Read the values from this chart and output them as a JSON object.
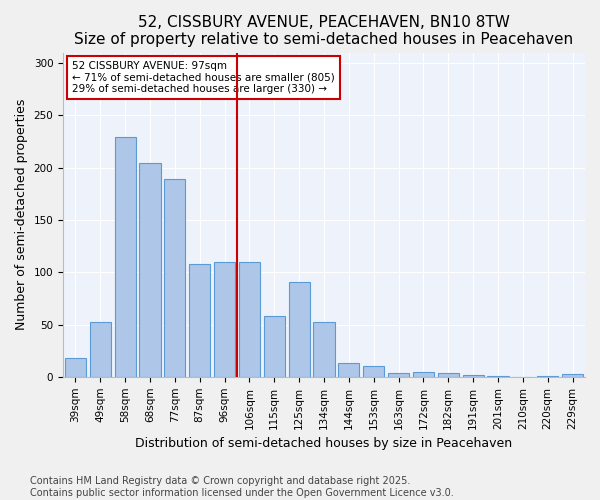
{
  "title": "52, CISSBURY AVENUE, PEACEHAVEN, BN10 8TW",
  "subtitle": "Size of property relative to semi-detached houses in Peacehaven",
  "xlabel": "Distribution of semi-detached houses by size in Peacehaven",
  "ylabel": "Number of semi-detached properties",
  "categories": [
    "39sqm",
    "49sqm",
    "58sqm",
    "68sqm",
    "77sqm",
    "87sqm",
    "96sqm",
    "106sqm",
    "115sqm",
    "125sqm",
    "134sqm",
    "144sqm",
    "153sqm",
    "163sqm",
    "172sqm",
    "182sqm",
    "191sqm",
    "201sqm",
    "210sqm",
    "220sqm",
    "229sqm"
  ],
  "values": [
    18,
    52,
    229,
    205,
    189,
    108,
    110,
    110,
    58,
    91,
    52,
    13,
    10,
    4,
    5,
    4,
    2,
    1,
    0,
    1,
    3
  ],
  "bar_color": "#aec6e8",
  "bar_edge_color": "#5b9bd5",
  "vline_bin_index": 6,
  "vline_color": "#cc0000",
  "annotation_title": "52 CISSBURY AVENUE: 97sqm",
  "annotation_line2": "← 71% of semi-detached houses are smaller (805)",
  "annotation_line3": "29% of semi-detached houses are larger (330) →",
  "annotation_box_edgecolor": "#cc0000",
  "annotation_bg_color": "#ffffff",
  "ylim": [
    0,
    310
  ],
  "yticks": [
    0,
    50,
    100,
    150,
    200,
    250,
    300
  ],
  "background_color": "#eef3fb",
  "grid_color": "#ffffff",
  "footer_line1": "Contains HM Land Registry data © Crown copyright and database right 2025.",
  "footer_line2": "Contains public sector information licensed under the Open Government Licence v3.0.",
  "title_fontsize": 11,
  "xlabel_fontsize": 9,
  "ylabel_fontsize": 9,
  "tick_fontsize": 7.5,
  "footer_fontsize": 7,
  "fig_facecolor": "#f0f0f0"
}
